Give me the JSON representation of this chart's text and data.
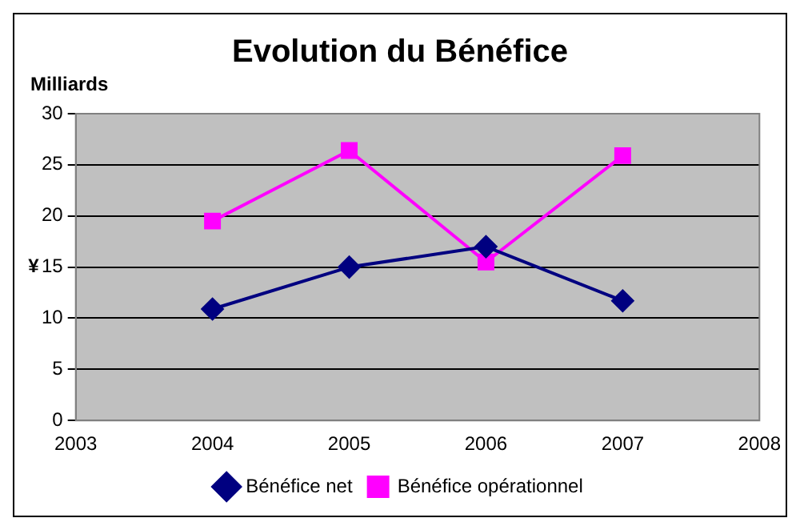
{
  "chart_data": {
    "type": "line",
    "title": "Evolution du Bénéfice",
    "ylabel": "¥",
    "annotations": [
      "Milliards"
    ],
    "x": [
      2004,
      2005,
      2006,
      2007
    ],
    "series": [
      {
        "name": "Bénéfice net",
        "color": "#000080",
        "values": [
          10.9,
          15,
          17,
          11.7
        ],
        "marker": "diamond"
      },
      {
        "name": "Bénéfice opérationnel",
        "color": "#ff00ff",
        "values": [
          19.5,
          26.4,
          15.5,
          25.9
        ],
        "marker": "square"
      }
    ],
    "xlim": [
      2003,
      2008
    ],
    "xticks": [
      2003,
      2004,
      2005,
      2006,
      2007,
      2008
    ],
    "ylim": [
      0,
      30
    ],
    "yticks": [
      0,
      5,
      10,
      15,
      20,
      25,
      30
    ],
    "grid": "y",
    "legend": "bottom",
    "line_style": "solid"
  }
}
